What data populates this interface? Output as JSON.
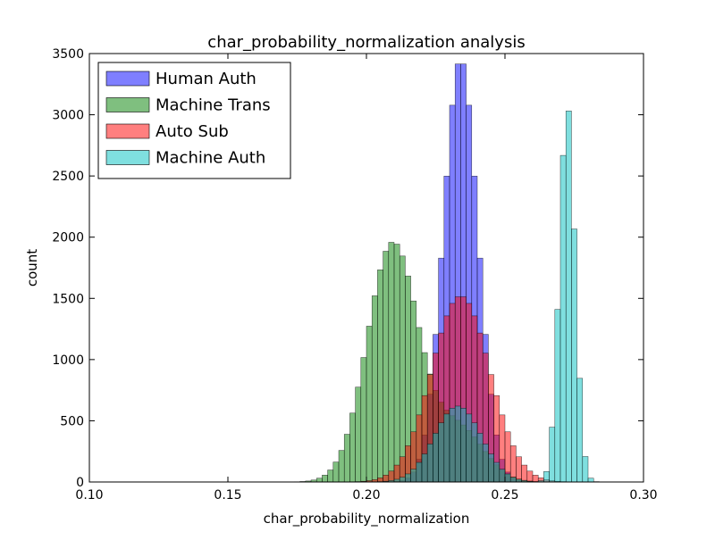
{
  "chart_data": {
    "type": "histogram",
    "title": "char_probability_normalization analysis",
    "xlabel": "char_probability_normalization",
    "ylabel": "count",
    "xlim": [
      0.1,
      0.3
    ],
    "ylim": [
      0,
      3500
    ],
    "x_ticks": [
      "0.10",
      "0.15",
      "0.20",
      "0.25",
      "0.30"
    ],
    "y_ticks": [
      "0",
      "500",
      "1000",
      "1500",
      "2000",
      "2500",
      "3000",
      "3500"
    ],
    "bin_width": 0.002,
    "legend_position": "upper-left",
    "grid": false,
    "series": [
      {
        "name": "Human Auth",
        "color": "#0000ff",
        "alpha": 0.5,
        "peaks": [
          {
            "center": 0.234,
            "height": 3460,
            "sigma": 0.0062
          }
        ]
      },
      {
        "name": "Machine Trans",
        "color": "#008000",
        "alpha": 0.5,
        "peaks": [
          {
            "center": 0.2095,
            "height": 1950,
            "sigma": 0.0092
          },
          {
            "center": 0.2335,
            "height": 430,
            "sigma": 0.009
          }
        ]
      },
      {
        "name": "Auto Sub",
        "color": "#ff0000",
        "alpha": 0.5,
        "peaks": [
          {
            "center": 0.234,
            "height": 1520,
            "sigma": 0.0105
          }
        ]
      },
      {
        "name": "Machine Auth",
        "color": "#00bfbf",
        "alpha": 0.5,
        "peaks": [
          {
            "center": 0.2725,
            "height": 3080,
            "sigma": 0.0028
          },
          {
            "center": 0.233,
            "height": 620,
            "sigma": 0.0085
          }
        ]
      }
    ]
  }
}
